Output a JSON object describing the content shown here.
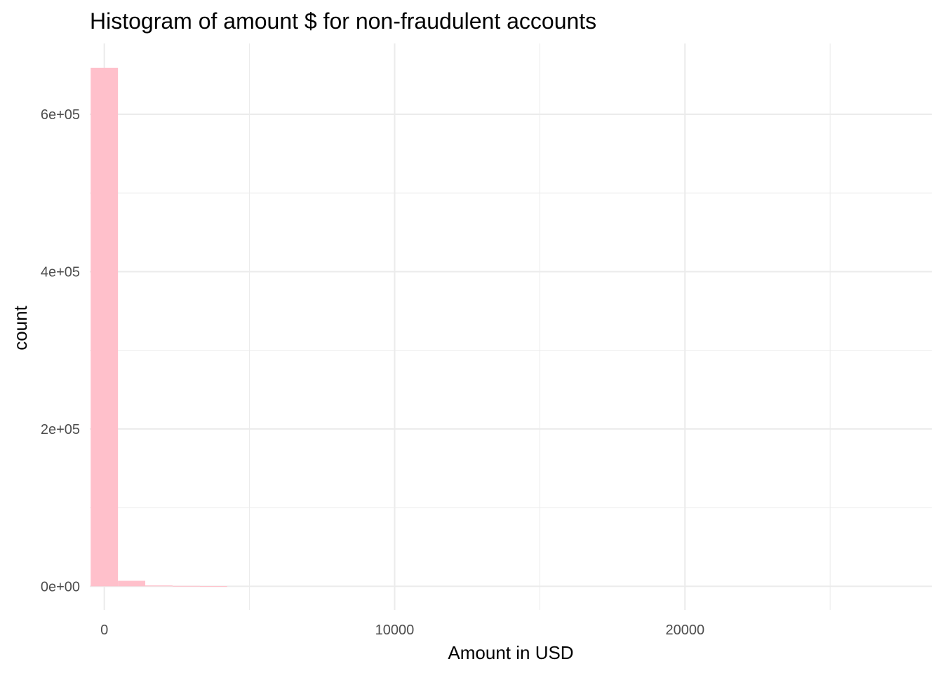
{
  "chart_data": {
    "type": "bar",
    "title": "Histogram of amount $ for non-fraudulent accounts",
    "xlabel": "Amount in USD",
    "ylabel": "count",
    "xlim": [
      -500,
      28500
    ],
    "ylim": [
      -30000,
      690000
    ],
    "x_ticks": [
      {
        "value": 0,
        "label": "0"
      },
      {
        "value": 10000,
        "label": "10000"
      },
      {
        "value": 20000,
        "label": "20000"
      }
    ],
    "x_minor_ticks": [
      5000,
      15000,
      25000
    ],
    "y_ticks": [
      {
        "value": 0,
        "label": "0e+00"
      },
      {
        "value": 200000,
        "label": "2e+05"
      },
      {
        "value": 400000,
        "label": "4e+05"
      },
      {
        "value": 600000,
        "label": "6e+05"
      }
    ],
    "y_minor_ticks": [
      100000,
      300000,
      500000
    ],
    "bin_width": 940,
    "bins": [
      {
        "x": 0,
        "count": 659000
      },
      {
        "x": 940,
        "count": 7000
      },
      {
        "x": 1880,
        "count": 1100
      },
      {
        "x": 2820,
        "count": 500
      },
      {
        "x": 3760,
        "count": 250
      }
    ],
    "fill": "#ffc0cb",
    "grid": true,
    "grid_color": "#ebebeb",
    "background": "#ffffff"
  }
}
